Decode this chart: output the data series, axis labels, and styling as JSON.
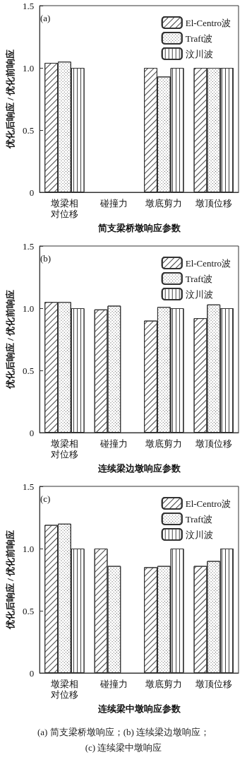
{
  "chart_data": [
    {
      "type": "bar",
      "title": "(a)",
      "xlabel": "简支梁桥墩响应参数",
      "ylabel": "优化后响应 / 优化前响应",
      "categories": [
        "墩梁相对位移",
        "碰撞力",
        "墩底剪力",
        "墩顶位移"
      ],
      "series": [
        {
          "name": "El-Centro波",
          "color": "#ffffff",
          "values": [
            1.04,
            null,
            1.0,
            1.0
          ]
        },
        {
          "name": "Traft波",
          "color": "#ffffff",
          "values": [
            1.05,
            null,
            0.93,
            1.0
          ]
        },
        {
          "name": "汶川波",
          "color": "#ffffff",
          "values": [
            1.0,
            null,
            1.0,
            1.0
          ]
        }
      ],
      "ylim": [
        0,
        1.5
      ],
      "yticks": [
        {
          "value": 0,
          "label": "0"
        },
        {
          "value": 0.5,
          "label": "0.5"
        },
        {
          "value": 1,
          "label": "1.0"
        },
        {
          "value": 1.5,
          "label": "1.5"
        }
      ],
      "legend": "top right",
      "grid": false
    },
    {
      "type": "bar",
      "title": "(b)",
      "xlabel": "连续梁边墩响应参数",
      "ylabel": "优化后响应 / 优化前响应",
      "categories": [
        "墩梁相对位移",
        "碰撞力",
        "墩底剪力",
        "墩顶位移"
      ],
      "series": [
        {
          "name": "El-Centro波",
          "color": "#ffffff",
          "values": [
            1.05,
            0.99,
            0.9,
            0.92
          ]
        },
        {
          "name": "Traft波",
          "color": "#ffffff",
          "values": [
            1.05,
            1.02,
            1.01,
            1.03
          ]
        },
        {
          "name": "汶川波",
          "color": "#ffffff",
          "values": [
            1.0,
            null,
            1.0,
            1.0
          ]
        }
      ],
      "ylim": [
        0,
        1.5
      ],
      "yticks": [
        {
          "value": 0,
          "label": "0"
        },
        {
          "value": 0.5,
          "label": "0.5"
        },
        {
          "value": 1,
          "label": "1.0"
        },
        {
          "value": 1.5,
          "label": "1.5"
        }
      ],
      "legend": "top right",
      "grid": false
    },
    {
      "type": "bar",
      "title": "(c)",
      "xlabel": "连续梁中墩响应参数",
      "ylabel": "优化后响应 / 优化前响应",
      "categories": [
        "墩梁相对位移",
        "碰撞力",
        "墩底剪力",
        "墩顶位移"
      ],
      "series": [
        {
          "name": "El-Centro波",
          "color": "#ffffff",
          "values": [
            1.19,
            1.0,
            0.85,
            0.86
          ]
        },
        {
          "name": "Traft波",
          "color": "#ffffff",
          "values": [
            1.2,
            0.86,
            0.86,
            0.9
          ]
        },
        {
          "name": "汶川波",
          "color": "#ffffff",
          "values": [
            1.0,
            null,
            1.0,
            1.0
          ]
        }
      ],
      "ylim": [
        0,
        1.5
      ],
      "yticks": [
        {
          "value": 0,
          "label": "0"
        },
        {
          "value": 0.5,
          "label": "0.5"
        },
        {
          "value": 1,
          "label": "1.0"
        },
        {
          "value": 1.5,
          "label": "1.5"
        }
      ],
      "legend": "top right",
      "grid": false,
      "annotations": [
        "(a) 简支梁桥墩响应；(b) 连续梁边墩响应；",
        "(c) 连续梁中墩响应"
      ]
    }
  ]
}
